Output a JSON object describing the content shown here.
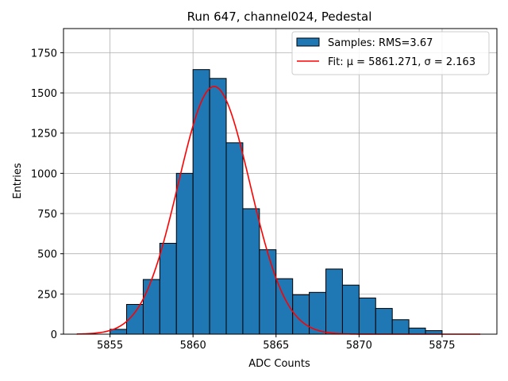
{
  "chart_data": {
    "type": "histogram",
    "title": "Run 647, channel024, Pedestal",
    "xlabel": "ADC Counts",
    "ylabel": "Entries",
    "xlim": [
      5852.2,
      5878.3
    ],
    "ylim": [
      0,
      1900
    ],
    "xticks": [
      5855,
      5860,
      5865,
      5870,
      5875
    ],
    "yticks": [
      0,
      250,
      500,
      750,
      1000,
      1250,
      1500,
      1750
    ],
    "grid": true,
    "legend_position": "top-right",
    "bar_color": "#1f77b4",
    "fit_color": "#ff0000",
    "bins": {
      "edges": [
        5855,
        5856,
        5857,
        5858,
        5859,
        5860,
        5861,
        5862,
        5863,
        5864,
        5865,
        5866,
        5867,
        5868,
        5869,
        5870,
        5871,
        5872,
        5873,
        5874,
        5875
      ],
      "counts": [
        30,
        185,
        340,
        565,
        1000,
        1645,
        1590,
        1190,
        780,
        525,
        345,
        245,
        260,
        405,
        305,
        225,
        160,
        90,
        38,
        22
      ]
    },
    "fit": {
      "mu": 5861.271,
      "sigma": 2.163,
      "amplitude": 1540,
      "x_range": [
        5853,
        5877.3
      ]
    },
    "legend": [
      {
        "label": "Samples: RMS=3.67",
        "kind": "patch"
      },
      {
        "label": "Fit: μ = 5861.271, σ = 2.163",
        "kind": "line"
      }
    ]
  }
}
